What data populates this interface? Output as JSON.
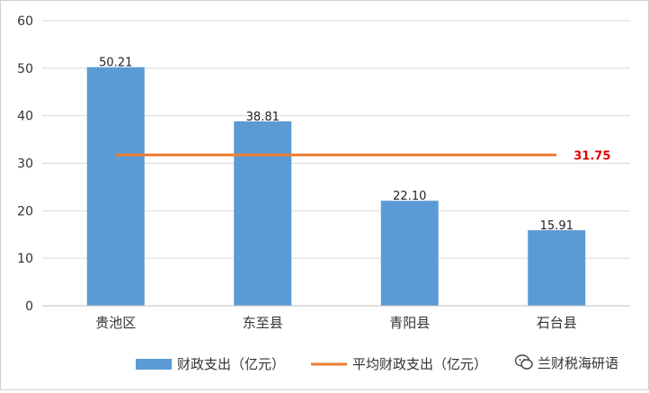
{
  "chart_data": {
    "type": "bar",
    "categories": [
      "贵池区",
      "东至县",
      "青阳县",
      "石台县"
    ],
    "series": [
      {
        "name": "财政支出（亿元）",
        "type": "bar",
        "values": [
          50.21,
          38.81,
          22.1,
          15.91
        ],
        "labels": [
          "50.21",
          "38.81",
          "22.10",
          "15.91"
        ],
        "color": "#5b9bd5"
      },
      {
        "name": "平均财政支出（亿元）",
        "type": "line",
        "values": [
          31.75,
          31.75,
          31.75,
          31.75
        ],
        "label": "31.75",
        "color": "#ed7d31"
      }
    ],
    "ylim": [
      0,
      60
    ],
    "yticks": [
      0,
      10,
      20,
      30,
      40,
      50,
      60
    ],
    "grid": true,
    "legend": "bottom",
    "title": "",
    "xlabel": "",
    "ylabel": "",
    "avg_label_color": "#e00000"
  },
  "watermark": {
    "text": "兰财税海研语",
    "icon": "wechat-icon"
  }
}
